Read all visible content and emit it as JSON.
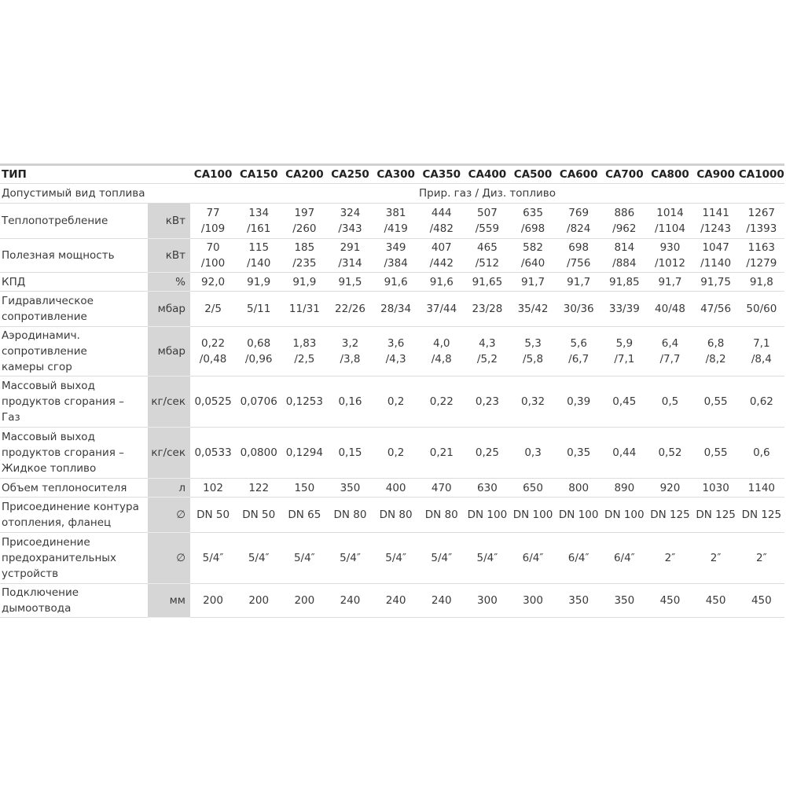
{
  "header": {
    "type_label": "ТИП",
    "models": [
      "CA100",
      "CA150",
      "CA200",
      "CA250",
      "CA300",
      "CA350",
      "CA400",
      "CA500",
      "CA600",
      "CA700",
      "CA800",
      "CA900",
      "CA1000"
    ]
  },
  "fuel_row": {
    "label": "Допустимый вид топлива",
    "value": "Прир. газ / Диз. топливо"
  },
  "rows": [
    {
      "label": "Теплопотребление",
      "unit": "кВт",
      "values": [
        "77\n/109",
        "134\n/161",
        "197\n/260",
        "324\n/343",
        "381\n/419",
        "444\n/482",
        "507\n/559",
        "635\n/698",
        "769\n/824",
        "886\n/962",
        "1014\n/1104",
        "1141\n/1243",
        "1267\n/1393"
      ]
    },
    {
      "label": "Полезная мощность",
      "unit": "кВт",
      "values": [
        "70\n/100",
        "115\n/140",
        "185\n/235",
        "291\n/314",
        "349\n/384",
        "407\n/442",
        "465\n/512",
        "582\n/640",
        "698\n/756",
        "814\n/884",
        "930\n/1012",
        "1047\n/1140",
        "1163\n/1279"
      ]
    },
    {
      "label": "КПД",
      "unit": "%",
      "values": [
        "92,0",
        "91,9",
        "91,9",
        "91,5",
        "91,6",
        "91,6",
        "91,65",
        "91,7",
        "91,7",
        "91,85",
        "91,7",
        "91,75",
        "91,8"
      ]
    },
    {
      "label": "Гидравлическое\nсопротивление",
      "unit": "мбар",
      "values": [
        "2/5",
        "5/11",
        "11/31",
        "22/26",
        "28/34",
        "37/44",
        "23/28",
        "35/42",
        "30/36",
        "33/39",
        "40/48",
        "47/56",
        "50/60"
      ]
    },
    {
      "label": "Аэродинамич.\nсопротивление\nкамеры сгор",
      "unit": "мбар",
      "values": [
        "0,22\n/0,48",
        "0,68\n/0,96",
        "1,83\n/2,5",
        "3,2\n/3,8",
        "3,6\n/4,3",
        "4,0\n/4,8",
        "4,3\n/5,2",
        "5,3\n/5,8",
        "5,6\n/6,7",
        "5,9\n/7,1",
        "6,4\n/7,7",
        "6,8\n/8,2",
        "7,1\n/8,4"
      ]
    },
    {
      "label": "Массовый выход\nпродуктов сгорания –\nГаз",
      "unit": "кг/сек",
      "values": [
        "0,0525",
        "0,0706",
        "0,1253",
        "0,16",
        "0,2",
        "0,22",
        "0,23",
        "0,32",
        "0,39",
        "0,45",
        "0,5",
        "0,55",
        "0,62"
      ]
    },
    {
      "label": "Массовый выход\nпродуктов сгорания –\nЖидкое топливо",
      "unit": "кг/сек",
      "values": [
        "0,0533",
        "0,0800",
        "0,1294",
        "0,15",
        "0,2",
        "0,21",
        "0,25",
        "0,3",
        "0,35",
        "0,44",
        "0,52",
        "0,55",
        "0,6"
      ]
    },
    {
      "label": "Объем теплоносителя",
      "unit": "л",
      "values": [
        "102",
        "122",
        "150",
        "350",
        "400",
        "470",
        "630",
        "650",
        "800",
        "890",
        "920",
        "1030",
        "1140"
      ]
    },
    {
      "label": "Присоединение контура\nотопления, фланец",
      "unit": "∅",
      "values": [
        "DN 50",
        "DN 50",
        "DN 65",
        "DN 80",
        "DN 80",
        "DN 80",
        "DN 100",
        "DN 100",
        "DN 100",
        "DN 100",
        "DN 125",
        "DN 125",
        "DN 125"
      ]
    },
    {
      "label": "Присоединение\nпредохранительных\nустройств",
      "unit": "∅",
      "values": [
        "5/4″",
        "5/4″",
        "5/4″",
        "5/4″",
        "5/4″",
        "5/4″",
        "5/4″",
        "6/4″",
        "6/4″",
        "6/4″",
        "2″",
        "2″",
        "2″"
      ]
    },
    {
      "label": "Подключение\nдымоотвода",
      "unit": "мм",
      "values": [
        "200",
        "200",
        "200",
        "240",
        "240",
        "240",
        "300",
        "300",
        "350",
        "350",
        "450",
        "450",
        "450"
      ]
    }
  ]
}
